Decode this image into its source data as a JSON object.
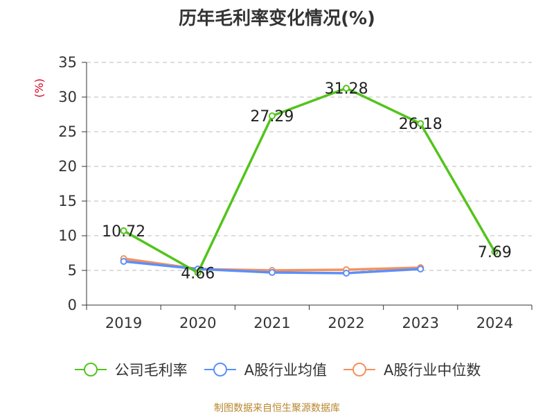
{
  "title": "历年毛利率变化情况(%)",
  "source": "制图数据来自恒生聚源数据库",
  "chart_data": {
    "type": "line",
    "ylabel": "(%)",
    "xlabel": "",
    "categories": [
      "2019",
      "2020",
      "2021",
      "2022",
      "2023",
      "2024"
    ],
    "ylim": [
      0,
      35
    ],
    "yticks": [
      0,
      5,
      10,
      15,
      20,
      25,
      30,
      35
    ],
    "grid": true,
    "legend_position": "bottom",
    "series": [
      {
        "name": "公司毛利率",
        "color": "#52c41a",
        "values": [
          10.72,
          4.66,
          27.29,
          31.28,
          26.18,
          7.69
        ],
        "labels": [
          "10.72",
          "4.66",
          "27.29",
          "31.28",
          "26.18",
          "7.69"
        ]
      },
      {
        "name": "A股行业均值",
        "color": "#5b8ff9",
        "values": [
          6.3,
          5.2,
          4.7,
          4.6,
          5.2,
          null
        ]
      },
      {
        "name": "A股行业中位数",
        "color": "#f4915e",
        "values": [
          6.7,
          5.2,
          5.0,
          5.1,
          5.4,
          null
        ]
      }
    ]
  }
}
